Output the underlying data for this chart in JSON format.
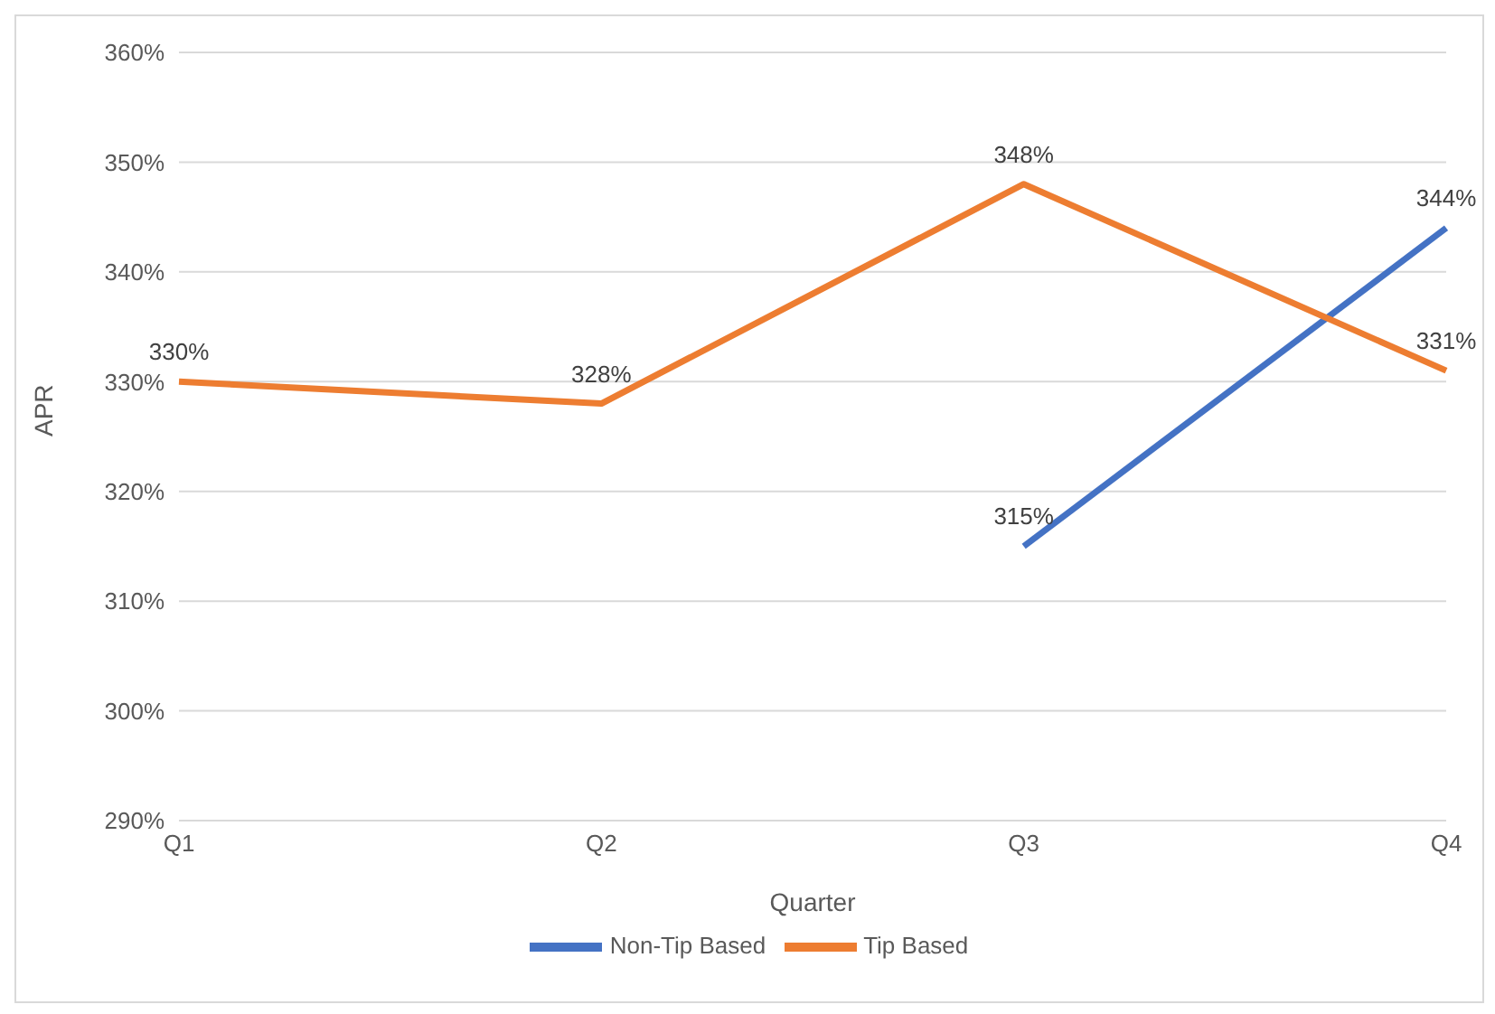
{
  "chart_data": {
    "type": "line",
    "xlabel": "Quarter",
    "ylabel": "APR",
    "categories": [
      "Q1",
      "Q2",
      "Q3",
      "Q4"
    ],
    "series": [
      {
        "name": "Non-Tip Based",
        "color": "#4472c4",
        "values": [
          null,
          null,
          315,
          344
        ],
        "value_labels": [
          null,
          null,
          "315%",
          "344%"
        ]
      },
      {
        "name": "Tip Based",
        "color": "#ed7d31",
        "values": [
          330,
          328,
          348,
          331
        ],
        "value_labels": [
          "330%",
          "328%",
          "348%",
          "331%"
        ]
      }
    ],
    "ylim": [
      290,
      360
    ],
    "yticks": [
      {
        "value": 290,
        "label": "290%"
      },
      {
        "value": 300,
        "label": "300%"
      },
      {
        "value": 310,
        "label": "310%"
      },
      {
        "value": 320,
        "label": "320%"
      },
      {
        "value": 330,
        "label": "330%"
      },
      {
        "value": 340,
        "label": "340%"
      },
      {
        "value": 350,
        "label": "350%"
      },
      {
        "value": 360,
        "label": "360%"
      }
    ],
    "grid": "y",
    "legend": "bottom",
    "marker": "none",
    "line_style": "solid"
  }
}
